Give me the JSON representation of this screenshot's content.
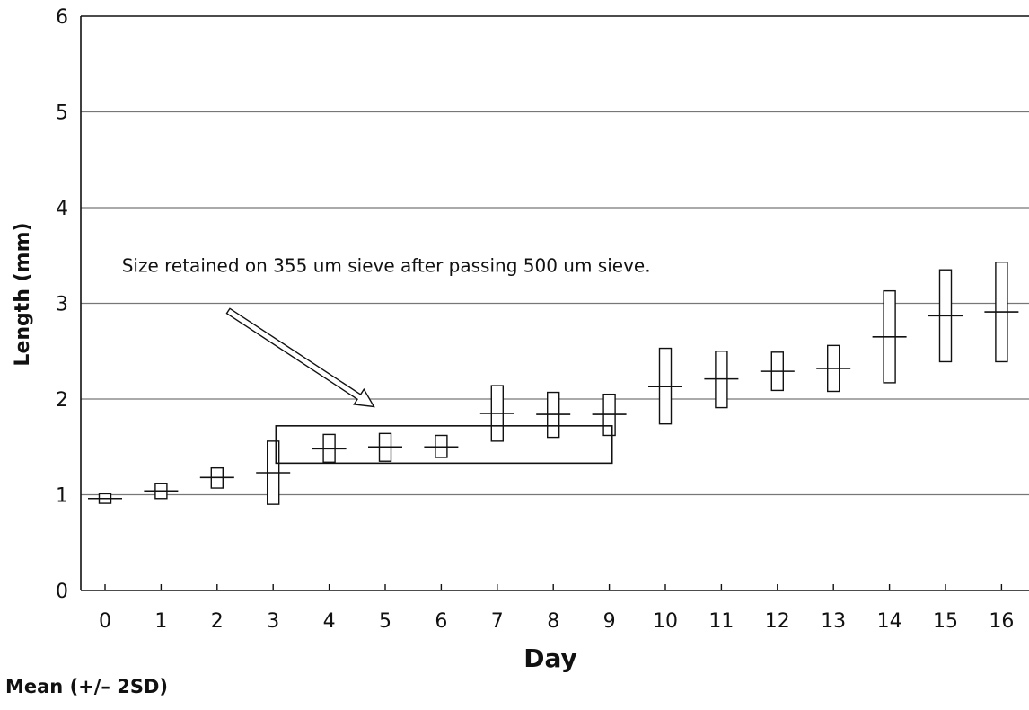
{
  "chart_data": {
    "type": "box",
    "xlabel": "Day",
    "ylabel": "Length (mm)",
    "ylim": [
      0,
      6
    ],
    "xlim": [
      -0.3,
      16.5
    ],
    "yticks": [
      0,
      1,
      2,
      3,
      4,
      5,
      6
    ],
    "grid": "horizontal",
    "categories": [
      "0",
      "1",
      "2",
      "3",
      "4",
      "5",
      "6",
      "7",
      "8",
      "9",
      "10",
      "11",
      "12",
      "13",
      "14",
      "15",
      "16"
    ],
    "points": [
      {
        "day": 0,
        "mean": 0.96,
        "low": 0.91,
        "high": 1.01
      },
      {
        "day": 1,
        "mean": 1.04,
        "low": 0.96,
        "high": 1.12
      },
      {
        "day": 2,
        "mean": 1.18,
        "low": 1.07,
        "high": 1.28
      },
      {
        "day": 3,
        "mean": 1.23,
        "low": 0.9,
        "high": 1.56
      },
      {
        "day": 4,
        "mean": 1.48,
        "low": 1.34,
        "high": 1.63
      },
      {
        "day": 5,
        "mean": 1.5,
        "low": 1.35,
        "high": 1.64
      },
      {
        "day": 6,
        "mean": 1.5,
        "low": 1.39,
        "high": 1.62
      },
      {
        "day": 7,
        "mean": 1.85,
        "low": 1.56,
        "high": 2.14
      },
      {
        "day": 8,
        "mean": 1.84,
        "low": 1.6,
        "high": 2.07
      },
      {
        "day": 9,
        "mean": 1.84,
        "low": 1.62,
        "high": 2.05
      },
      {
        "day": 10,
        "mean": 2.13,
        "low": 1.74,
        "high": 2.53
      },
      {
        "day": 11,
        "mean": 2.21,
        "low": 1.91,
        "high": 2.5
      },
      {
        "day": 12,
        "mean": 2.29,
        "low": 2.09,
        "high": 2.49
      },
      {
        "day": 13,
        "mean": 2.32,
        "low": 2.08,
        "high": 2.56
      },
      {
        "day": 14,
        "mean": 2.65,
        "low": 2.17,
        "high": 3.13
      },
      {
        "day": 15,
        "mean": 2.87,
        "low": 2.39,
        "high": 3.35
      },
      {
        "day": 16,
        "mean": 2.91,
        "low": 2.39,
        "high": 3.43
      }
    ],
    "sieve_band": {
      "day_start": 3.05,
      "day_end": 9.05,
      "low": 1.33,
      "high": 1.72
    },
    "annotation": {
      "text": "Size retained on 355 um sieve after passing 500 um sieve.",
      "x": 0.3,
      "y": 3.33
    },
    "arrow": {
      "from": [
        2.2,
        2.92
      ],
      "to": [
        4.8,
        1.92
      ]
    }
  },
  "footnote": "Mean (+/– 2SD)"
}
